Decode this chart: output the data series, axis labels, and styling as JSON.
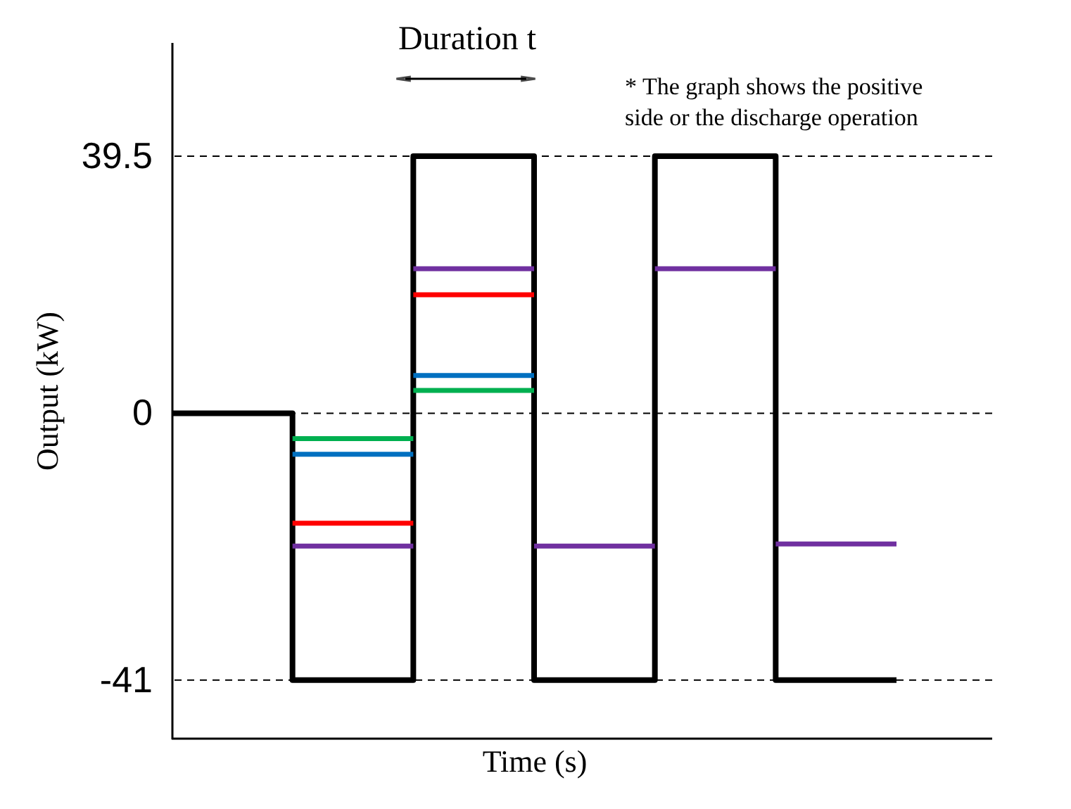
{
  "chart_data": {
    "type": "step",
    "xlabel": "Time (s)",
    "ylabel": "Output (kW)",
    "categories": [
      null,
      null,
      null,
      null,
      null,
      null,
      null
    ],
    "ylim": [
      -50,
      57
    ],
    "yticks": [
      -41,
      0,
      39.5
    ],
    "series": [
      {
        "color": "#000000",
        "values": [
          0,
          -41,
          39.5,
          -41,
          39.5,
          -41,
          -41
        ]
      },
      {
        "color": "#00b050",
        "values": [
          null,
          -3.9,
          -3.9,
          null,
          null,
          null,
          null
        ]
      },
      {
        "color": "#00b050",
        "values": [
          null,
          null,
          3.5,
          3.5,
          null,
          null,
          null
        ]
      },
      {
        "color": "#0070c0",
        "values": [
          null,
          -6.3,
          -6.3,
          null,
          null,
          null,
          null
        ]
      },
      {
        "color": "#0070c0",
        "values": [
          null,
          null,
          5.8,
          5.8,
          null,
          null,
          null
        ]
      },
      {
        "color": "#ff0000",
        "values": [
          null,
          -16.9,
          -16.9,
          null,
          null,
          null,
          null
        ]
      },
      {
        "color": "#ff0000",
        "values": [
          null,
          null,
          18.2,
          18.2,
          null,
          null,
          null
        ]
      },
      {
        "color": "#7030a0",
        "values": [
          null,
          -20.4,
          -20.4,
          null,
          null,
          null,
          null
        ]
      },
      {
        "color": "#7030a0",
        "values": [
          null,
          null,
          22.2,
          22.2,
          null,
          null,
          null
        ]
      },
      {
        "color": "#7030a0",
        "values": [
          null,
          null,
          null,
          -20.4,
          -20.4,
          null,
          null
        ]
      },
      {
        "color": "#7030a0",
        "values": [
          null,
          null,
          null,
          null,
          22.2,
          22.2,
          null
        ]
      },
      {
        "color": "#7030a0",
        "values": [
          null,
          null,
          null,
          null,
          null,
          -20.1,
          -20.1
        ]
      }
    ],
    "ref_lines": [
      {
        "axis": "y",
        "value": 39.5,
        "line_style": "dashed",
        "color": "#000000"
      },
      {
        "axis": "y",
        "value": 0,
        "line_style": "dashed",
        "color": "#000000"
      },
      {
        "axis": "y",
        "value": -41,
        "line_style": "dashed",
        "color": "#000000"
      }
    ],
    "annotations": [
      "Duration t",
      "* The graph shows the positive side or the discharge operation"
    ]
  }
}
